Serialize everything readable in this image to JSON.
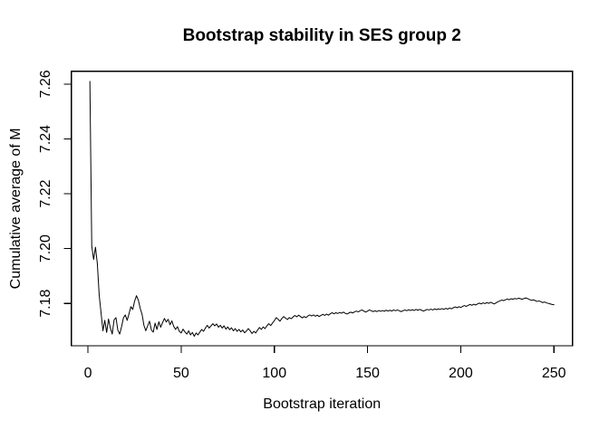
{
  "figure": {
    "background_color": "#ffffff",
    "foreground_color": "#000000"
  },
  "chart_data": {
    "type": "line",
    "title": "Bootstrap stability in SES group 2",
    "xlabel": "Bootstrap iteration",
    "ylabel": "Cumulative average of M",
    "legend": null,
    "grid": false,
    "line_color": "#000000",
    "axis_color": "#000000",
    "x_start": 1,
    "x_step": 1,
    "xlim": [
      -8.96,
      259.96
    ],
    "ylim": [
      7.1645,
      7.2647
    ],
    "xticks": [
      {
        "label": "0",
        "value": 0
      },
      {
        "label": "50",
        "value": 50
      },
      {
        "label": "100",
        "value": 100
      },
      {
        "label": "150",
        "value": 150
      },
      {
        "label": "200",
        "value": 200
      },
      {
        "label": "250",
        "value": 250
      }
    ],
    "yticks": [
      {
        "label": "7.18",
        "value": 7.18
      },
      {
        "label": "7.20",
        "value": 7.2
      },
      {
        "label": "7.22",
        "value": 7.22
      },
      {
        "label": "7.24",
        "value": 7.24
      },
      {
        "label": "7.26",
        "value": 7.26
      }
    ],
    "values": [
      7.261,
      7.201,
      7.196,
      7.2005,
      7.1945,
      7.183,
      7.1765,
      7.17,
      7.1738,
      7.1694,
      7.1743,
      7.171,
      7.1688,
      7.174,
      7.1748,
      7.1702,
      7.1688,
      7.1715,
      7.1747,
      7.1758,
      7.1738,
      7.1762,
      7.1788,
      7.1778,
      7.1808,
      7.1828,
      7.1812,
      7.1782,
      7.176,
      7.172,
      7.17,
      7.1718,
      7.1735,
      7.1703,
      7.1695,
      7.1728,
      7.1705,
      7.1733,
      7.1713,
      7.173,
      7.1745,
      7.1732,
      7.1742,
      7.1722,
      7.1736,
      7.1716,
      7.1705,
      7.1715,
      7.1698,
      7.1692,
      7.1706,
      7.1696,
      7.1688,
      7.17,
      7.1685,
      7.1694,
      7.168,
      7.1692,
      7.1685,
      7.1695,
      7.1705,
      7.1698,
      7.171,
      7.172,
      7.171,
      7.1718,
      7.1726,
      7.1718,
      7.1725,
      7.1713,
      7.172,
      7.171,
      7.1718,
      7.1706,
      7.1714,
      7.1704,
      7.1711,
      7.17,
      7.1708,
      7.1698,
      7.1705,
      7.1696,
      7.1703,
      7.1693,
      7.1699,
      7.1708,
      7.17,
      7.169,
      7.1698,
      7.1692,
      7.1703,
      7.1712,
      7.1705,
      7.1714,
      7.1708,
      7.1718,
      7.1726,
      7.1719,
      7.1728,
      7.1737,
      7.1748,
      7.1742,
      7.1735,
      7.1745,
      7.1752,
      7.1746,
      7.1741,
      7.1748,
      7.1744,
      7.175,
      7.1756,
      7.1751,
      7.1757,
      7.1752,
      7.1747,
      7.1752,
      7.1748,
      7.1754,
      7.1758,
      7.1754,
      7.1758,
      7.1753,
      7.1757,
      7.1752,
      7.1756,
      7.176,
      7.1756,
      7.1761,
      7.1757,
      7.1762,
      7.1766,
      7.1762,
      7.1766,
      7.1763,
      7.1767,
      7.1764,
      7.1768,
      7.1764,
      7.1761,
      7.1765,
      7.1768,
      7.1765,
      7.1769,
      7.1772,
      7.1769,
      7.1773,
      7.1776,
      7.1772,
      7.1768,
      7.1772,
      7.1776,
      7.1773,
      7.177,
      7.1773,
      7.177,
      7.1774,
      7.1771,
      7.1774,
      7.1771,
      7.1775,
      7.1772,
      7.1775,
      7.1772,
      7.1776,
      7.1773,
      7.1776,
      7.1773,
      7.177,
      7.1773,
      7.1776,
      7.1773,
      7.1777,
      7.1774,
      7.1777,
      7.1774,
      7.1778,
      7.1775,
      7.1778,
      7.1775,
      7.1772,
      7.1775,
      7.1778,
      7.1776,
      7.1779,
      7.1776,
      7.178,
      7.1777,
      7.178,
      7.1778,
      7.1781,
      7.1778,
      7.1782,
      7.1779,
      7.1783,
      7.178,
      7.1784,
      7.1787,
      7.1784,
      7.1788,
      7.1785,
      7.1789,
      7.1792,
      7.1789,
      7.1793,
      7.1796,
      7.1793,
      7.1797,
      7.1794,
      7.1798,
      7.1801,
      7.1798,
      7.1802,
      7.1799,
      7.1803,
      7.18,
      7.1804,
      7.1801,
      7.1798,
      7.1802,
      7.1806,
      7.1809,
      7.1812,
      7.181,
      7.1813,
      7.1816,
      7.1813,
      7.1817,
      7.1815,
      7.1818,
      7.1816,
      7.1819,
      7.1817,
      7.1815,
      7.1818,
      7.182,
      7.1817,
      7.1814,
      7.1811,
      7.1813,
      7.181,
      7.1807,
      7.1809,
      7.1806,
      7.1803,
      7.1805,
      7.1802,
      7.18,
      7.1798,
      7.1796,
      7.1795
    ]
  }
}
